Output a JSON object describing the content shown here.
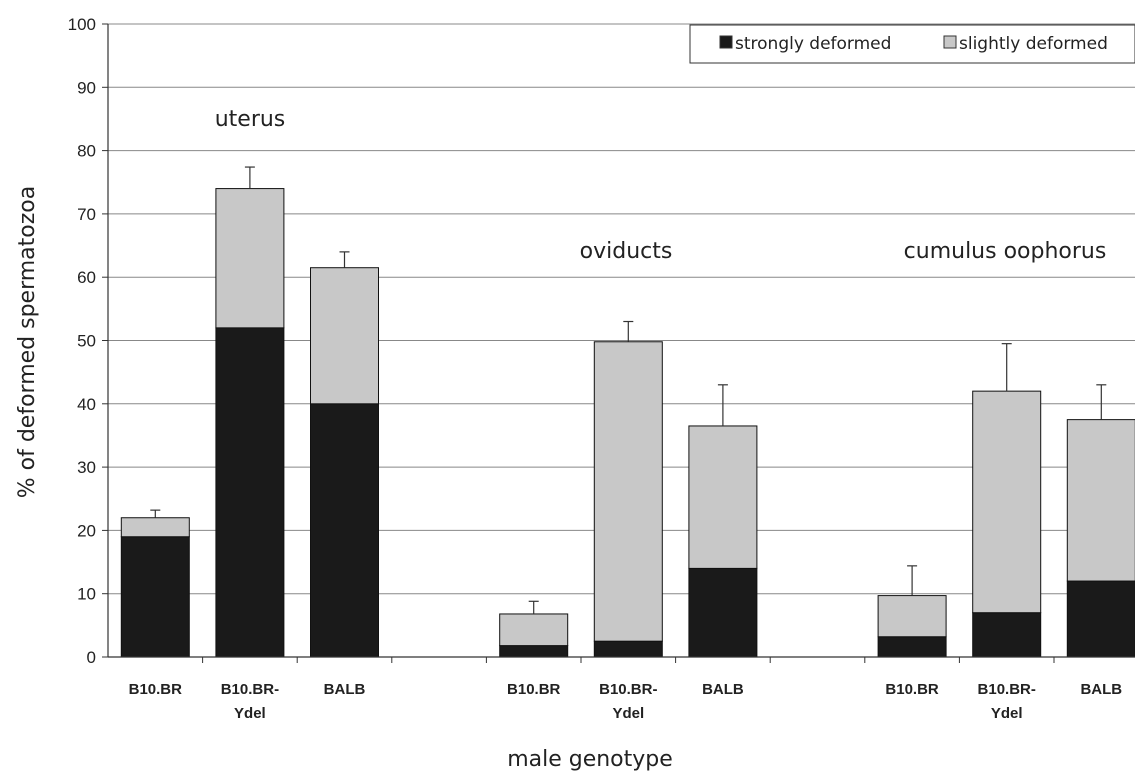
{
  "chart_data": {
    "type": "bar",
    "stacked": true,
    "title": "",
    "xlabel": "male genotype",
    "ylabel": "% of deformed spermatozoa",
    "ylim": [
      0,
      100
    ],
    "yticks": [
      0,
      10,
      20,
      30,
      40,
      50,
      60,
      70,
      80,
      90,
      100
    ],
    "grid": true,
    "legend_position": "top-right",
    "groups": [
      {
        "label": "uterus",
        "categories": [
          [
            "B10.BR"
          ],
          [
            "B10.BR-",
            "Ydel"
          ],
          [
            "BALB"
          ]
        ],
        "strongly": [
          19,
          52,
          40
        ],
        "slightly": [
          3,
          22,
          21.5
        ],
        "error": [
          1.2,
          3.4,
          2.5
        ]
      },
      {
        "label": "oviducts",
        "categories": [
          [
            "B10.BR"
          ],
          [
            "B10.BR-",
            "Ydel"
          ],
          [
            "BALB"
          ]
        ],
        "strongly": [
          1.8,
          2.5,
          14
        ],
        "slightly": [
          5,
          47.3,
          22.5
        ],
        "error": [
          2,
          3.2,
          6.5
        ]
      },
      {
        "label": "cumulus  oophorus",
        "categories": [
          [
            "B10.BR"
          ],
          [
            "B10.BR-",
            "Ydel"
          ],
          [
            "BALB"
          ]
        ],
        "strongly": [
          3.2,
          7,
          12
        ],
        "slightly": [
          6.5,
          35,
          25.5
        ],
        "error": [
          4.7,
          7.5,
          5.5
        ]
      }
    ],
    "series": [
      {
        "name": "strongly deformed",
        "color": "#1a1a1a"
      },
      {
        "name": "slightly deformed",
        "color": "#c8c8c8"
      }
    ]
  }
}
